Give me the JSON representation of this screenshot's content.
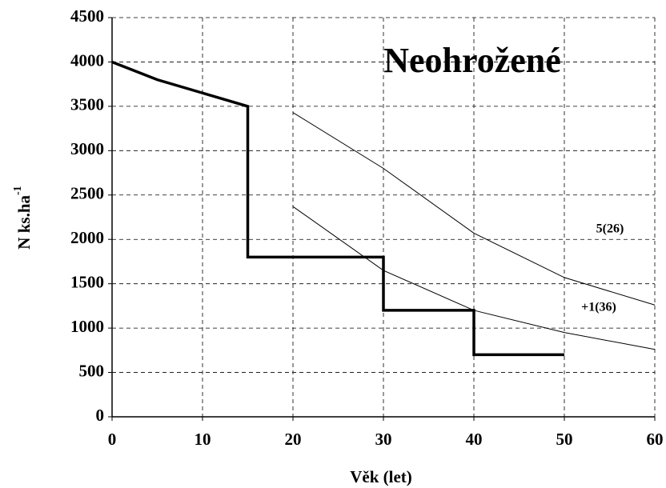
{
  "chart_data": {
    "type": "line",
    "title": "Neohrožené",
    "x_label": "Věk (let)",
    "y_label": {
      "text": "N ks.ha",
      "superscript": "-1"
    },
    "xlim": [
      0,
      60
    ],
    "xticks": [
      0,
      10,
      20,
      30,
      40,
      50,
      60
    ],
    "ylim": [
      0,
      4500
    ],
    "yticks": [
      0,
      500,
      1000,
      1500,
      2000,
      2500,
      3000,
      3500,
      4000,
      4500
    ],
    "grid": true,
    "series": [
      {
        "color": "#000000",
        "width": "thick",
        "x": [
          0,
          5,
          10,
          15,
          15,
          30,
          30,
          40,
          40,
          50
        ],
        "values": [
          4000,
          3800,
          3650,
          3500,
          1800,
          1800,
          1200,
          1200,
          700,
          700
        ]
      },
      {
        "name": "5(26)",
        "color": "#000000",
        "width": "thin",
        "x": [
          20,
          30,
          40,
          50,
          60
        ],
        "values": [
          3430,
          2800,
          2070,
          1570,
          1260
        ]
      },
      {
        "name": "+1(36)",
        "color": "#000000",
        "width": "thin",
        "x": [
          20,
          30,
          40,
          50,
          60
        ],
        "values": [
          2370,
          1650,
          1200,
          950,
          760
        ]
      }
    ]
  }
}
